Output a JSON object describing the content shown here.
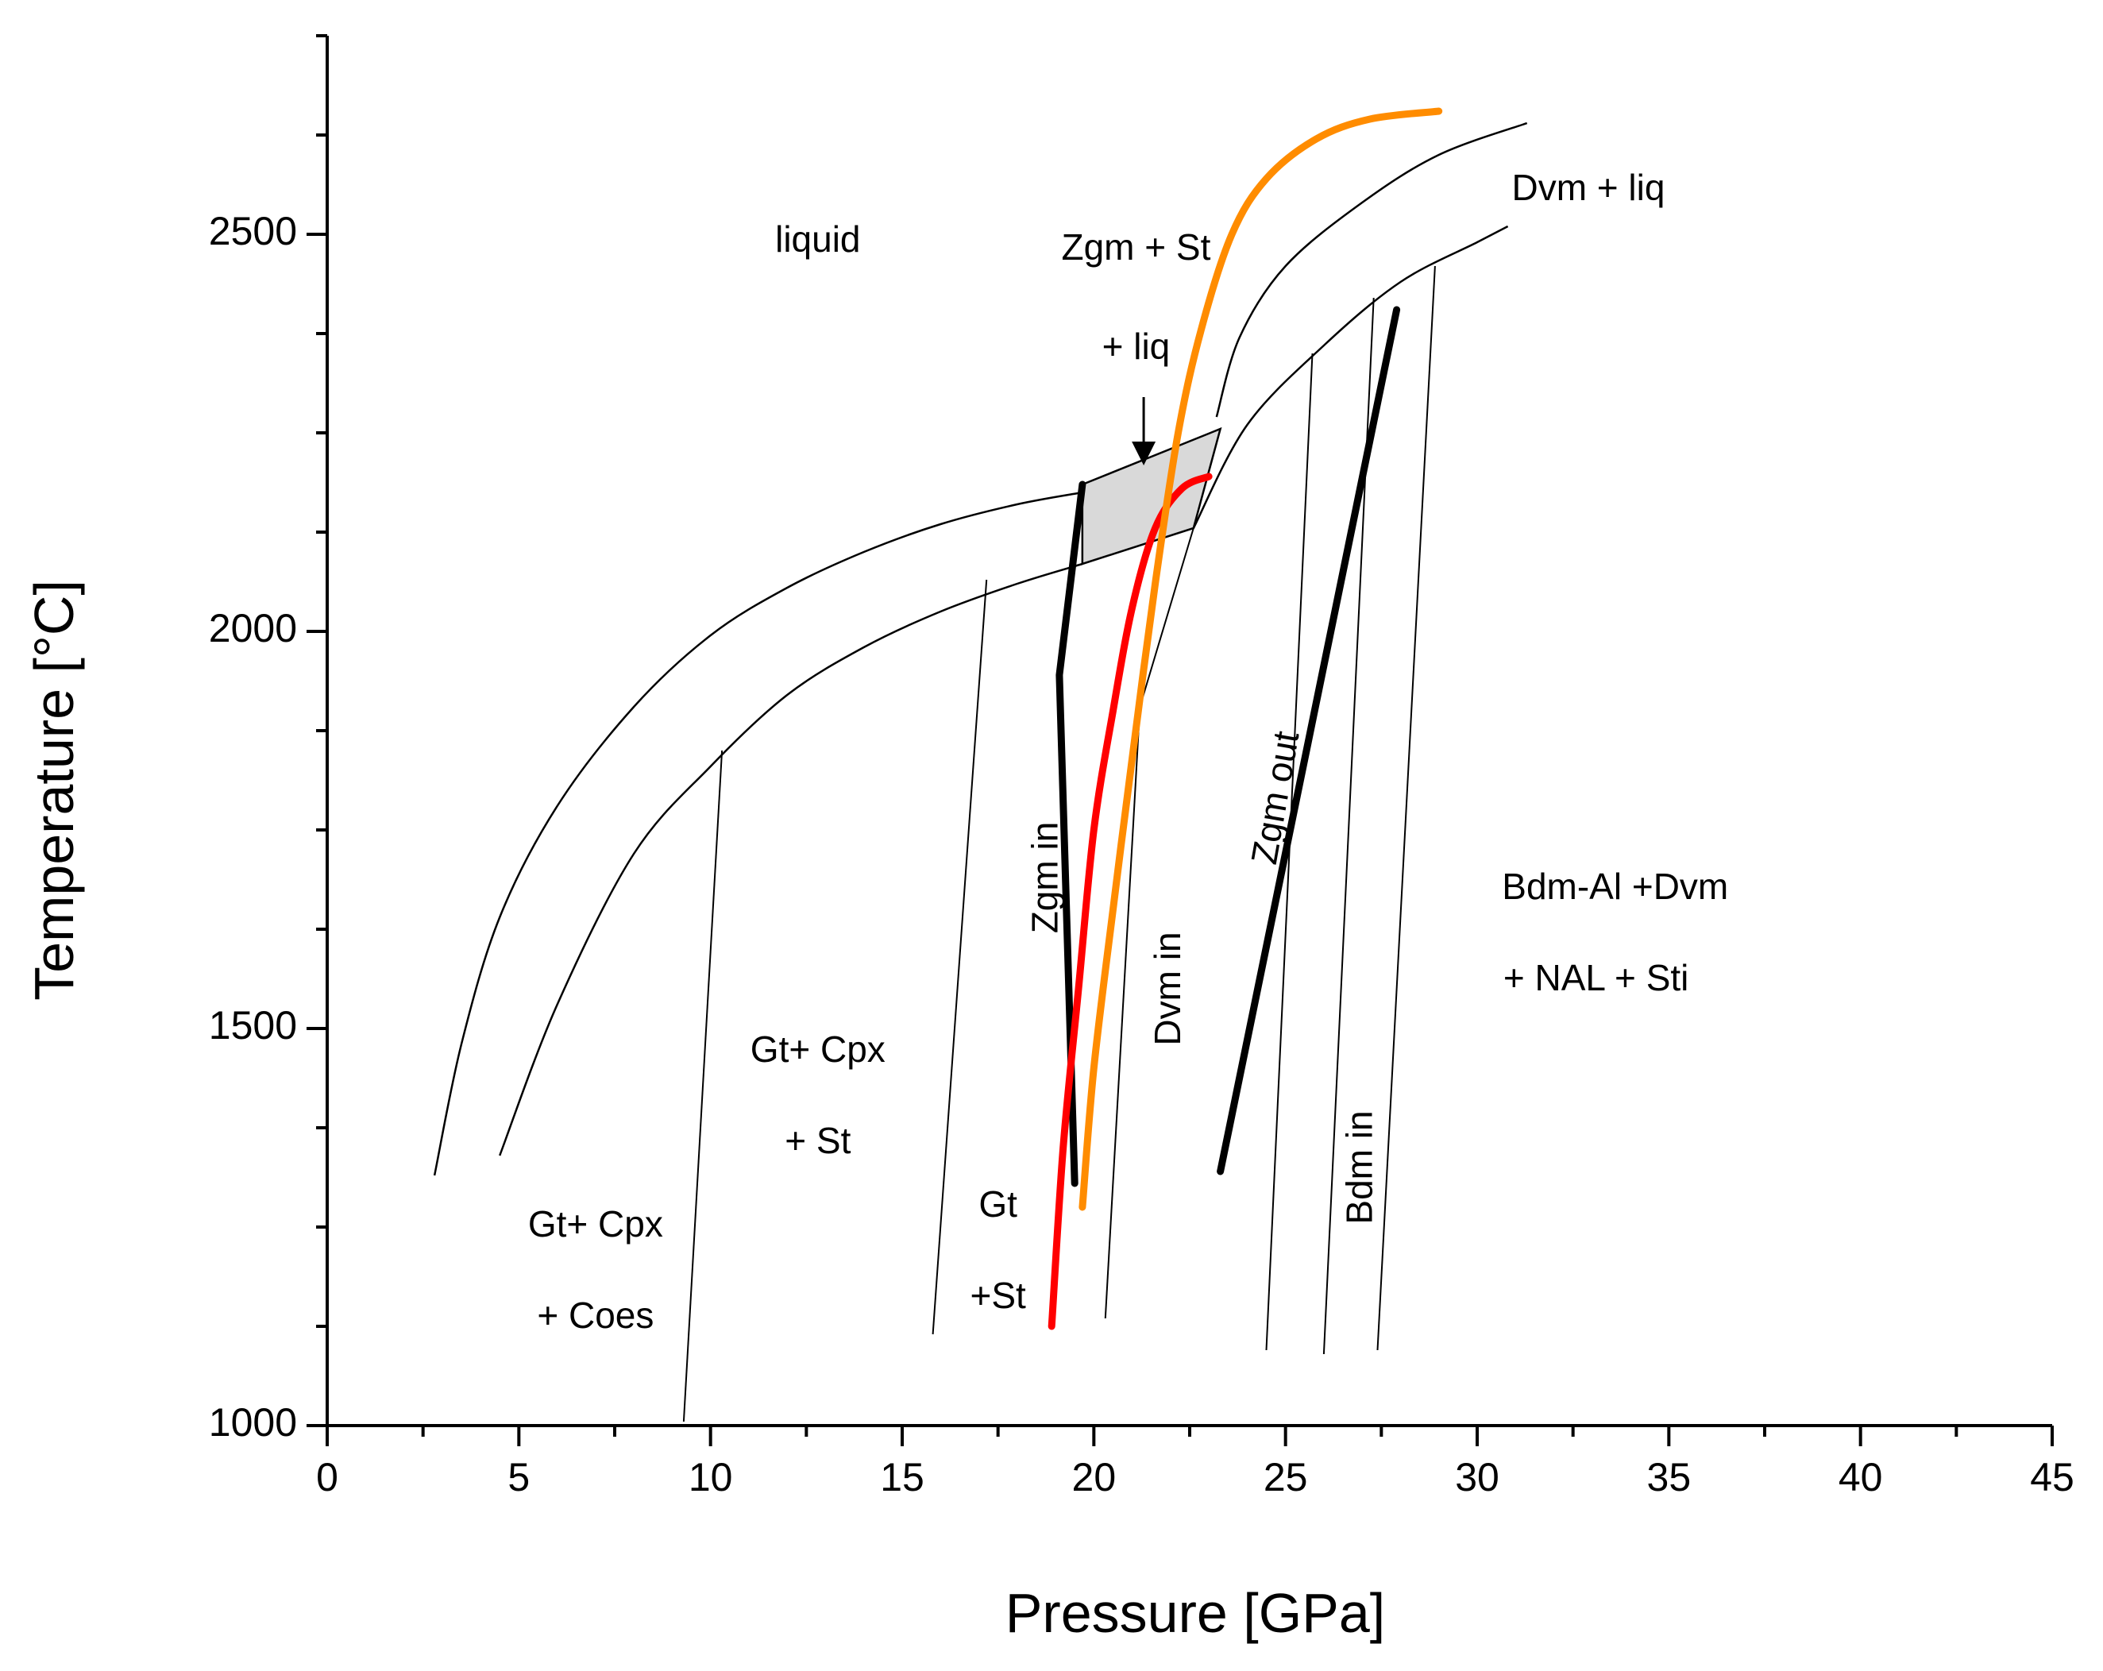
{
  "chart_data": {
    "type": "line",
    "xlabel": "Pressure [GPa]",
    "ylabel": "Temperature [°C]",
    "xlim": [
      0,
      45
    ],
    "ylim": [
      1000,
      2750
    ],
    "x_ticks": [
      {
        "value": 0,
        "label": "0"
      },
      {
        "value": 5,
        "label": "5"
      },
      {
        "value": 10,
        "label": "10"
      },
      {
        "value": 15,
        "label": "15"
      },
      {
        "value": 20,
        "label": "20"
      },
      {
        "value": 25,
        "label": "25"
      },
      {
        "value": 30,
        "label": "30"
      },
      {
        "value": 35,
        "label": "35"
      },
      {
        "value": 40,
        "label": "40"
      },
      {
        "value": 45,
        "label": "45"
      }
    ],
    "y_ticks": [
      {
        "value": 1000,
        "label": "1000"
      },
      {
        "value": 1500,
        "label": "1500"
      },
      {
        "value": 2000,
        "label": "2000"
      },
      {
        "value": 2500,
        "label": "2500"
      }
    ],
    "grid": false,
    "curves": [
      {
        "id": "solidus-upper",
        "color": "#000000",
        "width": 2.5,
        "points": [
          [
            2.8,
            1315
          ],
          [
            3.5,
            1480
          ],
          [
            4.5,
            1640
          ],
          [
            6,
            1780
          ],
          [
            8,
            1905
          ],
          [
            10,
            1995
          ],
          [
            12,
            2055
          ],
          [
            14,
            2100
          ],
          [
            16,
            2135
          ],
          [
            18,
            2160
          ],
          [
            19.7,
            2175
          ]
        ]
      },
      {
        "id": "solidus-lower",
        "color": "#000000",
        "width": 2.5,
        "points": [
          [
            4.5,
            1340
          ],
          [
            6,
            1530
          ],
          [
            8,
            1720
          ],
          [
            10,
            1830
          ],
          [
            12,
            1920
          ],
          [
            14,
            1980
          ],
          [
            16,
            2025
          ],
          [
            18,
            2060
          ],
          [
            19.7,
            2085
          ]
        ]
      },
      {
        "id": "liquidus-dvm",
        "color": "#000000",
        "width": 2.5,
        "points": [
          [
            23.2,
            2270
          ],
          [
            23.8,
            2370
          ],
          [
            25,
            2460
          ],
          [
            27,
            2540
          ],
          [
            29,
            2600
          ],
          [
            31.3,
            2640
          ]
        ]
      },
      {
        "id": "solidus-dvm",
        "color": "#000000",
        "width": 2.5,
        "points": [
          [
            22.6,
            2130
          ],
          [
            24,
            2260
          ],
          [
            26,
            2360
          ],
          [
            28,
            2440
          ],
          [
            30,
            2490
          ],
          [
            30.8,
            2510
          ]
        ]
      },
      {
        "id": "gt-cpx-coes",
        "color": "#000000",
        "width": 2,
        "points": [
          [
            9.3,
            1005
          ],
          [
            10.3,
            1850
          ]
        ]
      },
      {
        "id": "gt-cpx-st",
        "color": "#000000",
        "width": 2,
        "points": [
          [
            15.8,
            1115
          ],
          [
            17.2,
            2065
          ]
        ]
      },
      {
        "id": "dvm-in",
        "color": "#000000",
        "width": 2,
        "points": [
          [
            20.3,
            1135
          ],
          [
            21.2,
            1905
          ]
        ]
      },
      {
        "id": "melt-slope",
        "color": "#000000",
        "width": 2,
        "points": [
          [
            21.2,
            1905
          ],
          [
            22.6,
            2130
          ]
        ]
      },
      {
        "id": "boundary-1",
        "color": "#000000",
        "width": 2,
        "points": [
          [
            24.5,
            1095
          ],
          [
            25.7,
            2350
          ]
        ]
      },
      {
        "id": "bdm-in",
        "color": "#000000",
        "width": 2,
        "points": [
          [
            26,
            1090
          ],
          [
            27.3,
            2420
          ]
        ]
      },
      {
        "id": "boundary-3",
        "color": "#000000",
        "width": 2,
        "points": [
          [
            27.4,
            1095
          ],
          [
            28.9,
            2460
          ]
        ]
      },
      {
        "id": "zgm-in",
        "color": "#000000",
        "width": 9,
        "points": [
          [
            19.5,
            1305
          ],
          [
            19.1,
            1945
          ],
          [
            19.7,
            2185
          ]
        ]
      },
      {
        "id": "zgm-out",
        "color": "#000000",
        "width": 9,
        "points": [
          [
            23.3,
            1320
          ],
          [
            27.9,
            2405
          ]
        ]
      },
      {
        "id": "red-adiabat",
        "color": "#ff0000",
        "width": 9,
        "points": [
          [
            18.9,
            1125
          ],
          [
            19.2,
            1350
          ],
          [
            19.6,
            1550
          ],
          [
            20,
            1750
          ],
          [
            20.5,
            1900
          ],
          [
            21,
            2030
          ],
          [
            21.6,
            2130
          ],
          [
            22.3,
            2180
          ],
          [
            23,
            2195
          ]
        ]
      },
      {
        "id": "orange-adiabat",
        "color": "#ff8c00",
        "width": 9,
        "points": [
          [
            19.7,
            1275
          ],
          [
            20,
            1450
          ],
          [
            20.5,
            1650
          ],
          [
            21,
            1840
          ],
          [
            21.6,
            2060
          ],
          [
            22.2,
            2250
          ],
          [
            22.8,
            2380
          ],
          [
            23.6,
            2500
          ],
          [
            24.5,
            2570
          ],
          [
            25.8,
            2620
          ],
          [
            27.2,
            2645
          ],
          [
            29,
            2655
          ]
        ]
      }
    ],
    "shaded_region": {
      "fill": "#d9d9d9",
      "points": [
        [
          19.7,
          2185
        ],
        [
          23.3,
          2255
        ],
        [
          22.6,
          2130
        ],
        [
          19.7,
          2085
        ]
      ]
    },
    "annotations": [
      {
        "text": "liquid",
        "x": 12.8,
        "y": 2490
      },
      {
        "text": "Zgm + St",
        "x": 21.1,
        "y": 2480
      },
      {
        "text": "+ liq",
        "x": 21.1,
        "y": 2355
      },
      {
        "text": "Dvm + liq",
        "x": 32.9,
        "y": 2555
      },
      {
        "text": "Bdm-Al +Dvm",
        "x": 33.6,
        "y": 1675
      },
      {
        "text": "+ NAL + Sti",
        "x": 33.1,
        "y": 1560
      },
      {
        "text": "Gt+ Cpx",
        "x": 12.8,
        "y": 1470
      },
      {
        "text": "+ St",
        "x": 12.8,
        "y": 1355
      },
      {
        "text": "Gt",
        "x": 17.5,
        "y": 1275
      },
      {
        "text": "+St",
        "x": 17.5,
        "y": 1160
      },
      {
        "text": "Gt+ Cpx",
        "x": 7.0,
        "y": 1250
      },
      {
        "text": "+ Coes",
        "x": 7.0,
        "y": 1135
      },
      {
        "text": "Zgm in",
        "x": 18.8,
        "y": 1690,
        "rotate": -90
      },
      {
        "text": "Dvm in",
        "x": 22.0,
        "y": 1550,
        "rotate": -90
      },
      {
        "text": "Zgm out",
        "x": 24.8,
        "y": 1790,
        "rotate": -80
      },
      {
        "text": "Bdm in",
        "x": 27.0,
        "y": 1325,
        "rotate": -90
      }
    ],
    "arrow": {
      "from": [
        21.3,
        2295
      ],
      "to": [
        21.3,
        2210
      ]
    }
  }
}
